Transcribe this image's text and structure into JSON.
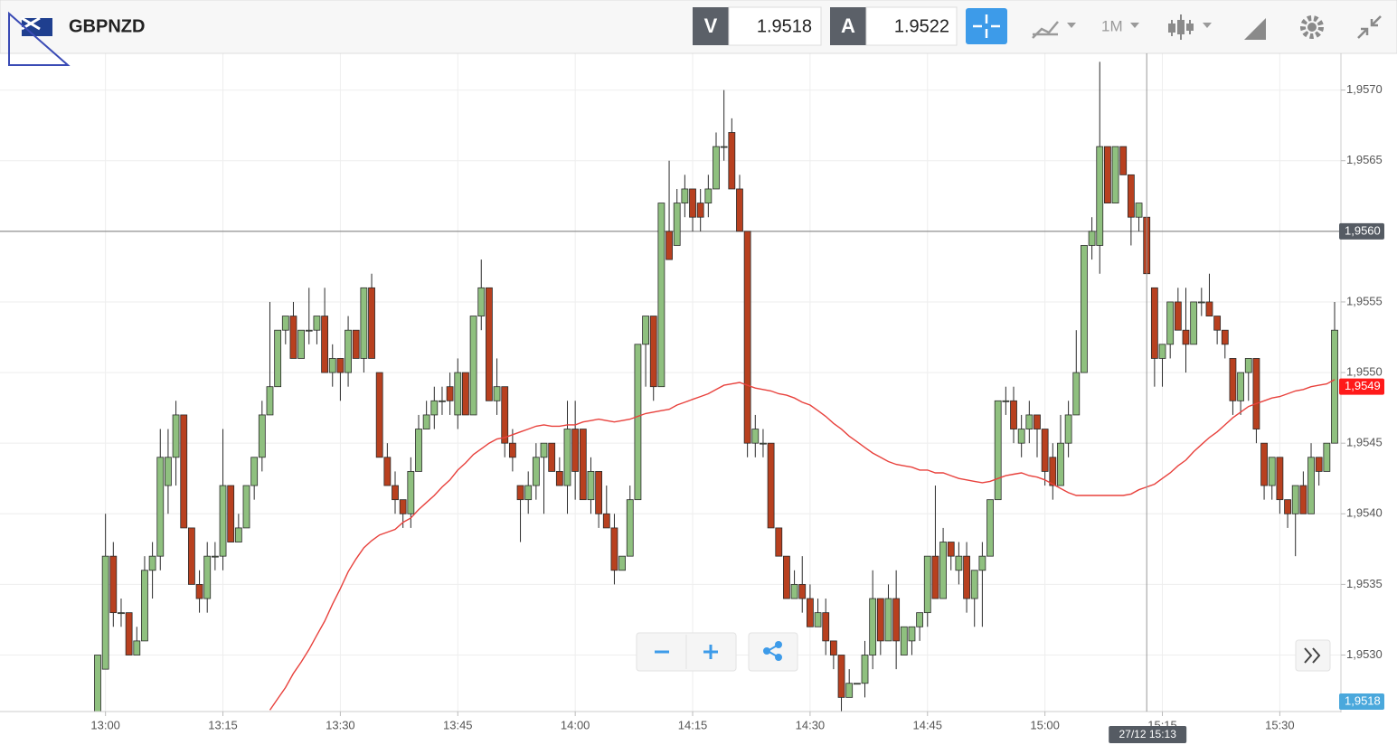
{
  "chart_data": {
    "type": "candlestick",
    "title": "GBPNZD",
    "bid": {
      "label": "V",
      "value": 1.9518
    },
    "ask": {
      "label": "A",
      "value": 1.9522
    },
    "interval": "1M",
    "categories_count_note_free": null,
    "xticks": [
      {
        "value": 1,
        "label": "13:00"
      },
      {
        "value": 16,
        "label": "13:15"
      },
      {
        "value": 31,
        "label": "13:30"
      },
      {
        "value": 46,
        "label": "13:45"
      },
      {
        "value": 61,
        "label": "14:00"
      },
      {
        "value": 76,
        "label": "14:15"
      },
      {
        "value": 91,
        "label": "14:30"
      },
      {
        "value": 106,
        "label": "14:45"
      },
      {
        "value": 121,
        "label": "15:00"
      },
      {
        "value": 136,
        "label": "15:15"
      },
      {
        "value": 151,
        "label": "15:30"
      }
    ],
    "xlim": [
      -0.5,
      158.5
    ],
    "ylim": [
      1.9526,
      1.95726
    ],
    "yticks": [
      {
        "value": 1.953,
        "label": "1,9530"
      },
      {
        "value": 1.9535,
        "label": "1,9535"
      },
      {
        "value": 1.954,
        "label": "1,9540"
      },
      {
        "value": 1.9545,
        "label": "1,9545"
      },
      {
        "value": 1.955,
        "label": "1,9550"
      },
      {
        "value": 1.9555,
        "label": "1,9555"
      },
      {
        "value": 1.956,
        "label": "1,9560"
      },
      {
        "value": 1.9565,
        "label": "1,9565"
      },
      {
        "value": 1.957,
        "label": "1,9570"
      }
    ],
    "grid": true,
    "up_color": "#8fc07f",
    "down_color": "#b8401f",
    "outline": "#2a2a2a",
    "open": [
      1.9526,
      1.9529,
      1.9537,
      1.9533,
      1.9533,
      1.953,
      1.9531,
      1.9536,
      1.9537,
      1.9542,
      1.9544,
      1.9547,
      1.9539,
      1.9535,
      1.9534,
      1.9537,
      1.9537,
      1.9542,
      1.9538,
      1.9539,
      1.9542,
      1.9544,
      1.9547,
      1.9549,
      1.9553,
      1.9554,
      1.9551,
      1.9553,
      1.9553,
      1.9554,
      1.955,
      1.9551,
      1.955,
      1.9553,
      1.9551,
      1.9556,
      1.955,
      1.9544,
      1.9542,
      1.9541,
      1.954,
      1.9543,
      1.9546,
      1.9547,
      1.9548,
      1.9549,
      1.9547,
      1.955,
      1.9547,
      1.9554,
      1.9556,
      1.9548,
      1.9549,
      1.9545,
      1.9542,
      1.9541,
      1.9542,
      1.9544,
      1.9545,
      1.9543,
      1.9542,
      1.9546,
      1.9546,
      1.9541,
      1.9543,
      1.954,
      1.9539,
      1.9536,
      1.9537,
      1.9541,
      1.9552,
      1.9554,
      1.9549,
      1.956,
      1.9559,
      1.9562,
      1.9563,
      1.9562,
      1.9562,
      1.9563,
      1.9566,
      1.9567,
      1.9563,
      1.956,
      1.9545,
      1.9545,
      1.9545,
      1.9539,
      1.9537,
      1.9534,
      1.9535,
      1.9534,
      1.9532,
      1.9533,
      1.9531,
      1.953,
      1.9527,
      1.9528,
      1.9528,
      1.953,
      1.9534,
      1.9531,
      1.9534,
      1.953,
      1.9531,
      1.9532,
      1.9533,
      1.9537,
      1.9534,
      1.9538,
      1.9536,
      1.9537,
      1.9534,
      1.9536,
      1.9537,
      1.9541,
      1.9548,
      1.9548,
      1.9545,
      1.9546,
      1.9547,
      1.9546,
      1.9544,
      1.9542,
      1.9545,
      1.9547,
      1.955,
      1.9559,
      1.9559,
      1.9566,
      1.9562,
      1.9566,
      1.9564,
      1.9561,
      1.9561,
      1.9556,
      1.9551,
      1.9552,
      1.9555,
      1.9553,
      1.9552,
      1.9555,
      1.9555,
      1.9554,
      1.9553,
      1.9551,
      1.9548,
      1.955,
      1.9551,
      1.9545,
      1.9542,
      1.9544,
      1.9541,
      1.954,
      1.9542,
      1.954,
      1.9544,
      1.9543,
      1.9545
    ],
    "high": [
      1.953,
      1.954,
      1.9538,
      1.9534,
      1.9533,
      1.9532,
      1.9537,
      1.9538,
      1.9546,
      1.9546,
      1.9548,
      1.9547,
      1.9539,
      1.9536,
      1.9538,
      1.9538,
      1.9546,
      1.9542,
      1.954,
      1.9542,
      1.9544,
      1.9548,
      1.9555,
      1.9553,
      1.9554,
      1.9555,
      1.9553,
      1.9556,
      1.9554,
      1.9556,
      1.9552,
      1.9551,
      1.9554,
      1.9553,
      1.9556,
      1.9557,
      1.955,
      1.9545,
      1.9543,
      1.9541,
      1.9544,
      1.9547,
      1.9548,
      1.9549,
      1.9549,
      1.955,
      1.9551,
      1.955,
      1.9554,
      1.9558,
      1.9556,
      1.9551,
      1.9549,
      1.9546,
      1.9542,
      1.9543,
      1.9545,
      1.9545,
      1.9545,
      1.9544,
      1.9548,
      1.9548,
      1.9546,
      1.9544,
      1.9543,
      1.9542,
      1.954,
      1.9537,
      1.9542,
      1.9552,
      1.9554,
      1.9554,
      1.9562,
      1.9565,
      1.9563,
      1.9564,
      1.9563,
      1.9563,
      1.9564,
      1.9567,
      1.957,
      1.9568,
      1.9564,
      1.956,
      1.9547,
      1.9546,
      1.9545,
      1.9539,
      1.9537,
      1.9536,
      1.9537,
      1.9535,
      1.9534,
      1.9534,
      1.9531,
      1.953,
      1.9529,
      1.9528,
      1.9531,
      1.9536,
      1.9534,
      1.9535,
      1.9536,
      1.9532,
      1.9532,
      1.9533,
      1.9537,
      1.9542,
      1.9539,
      1.9538,
      1.9538,
      1.9538,
      1.9536,
      1.9538,
      1.9541,
      1.9548,
      1.9549,
      1.9549,
      1.9547,
      1.9548,
      1.9547,
      1.9546,
      1.9545,
      1.9547,
      1.9548,
      1.9553,
      1.9559,
      1.9561,
      1.9572,
      1.9566,
      1.9566,
      1.9566,
      1.9564,
      1.9562,
      1.9561,
      1.9556,
      1.9552,
      1.9555,
      1.9556,
      1.9556,
      1.9555,
      1.9556,
      1.9557,
      1.9554,
      1.9553,
      1.9551,
      1.955,
      1.9551,
      1.9551,
      1.9545,
      1.9544,
      1.9544,
      1.9541,
      1.9542,
      1.9543,
      1.9545,
      1.9544,
      1.9545,
      1.9555
    ],
    "low": [
      1.9526,
      1.9529,
      1.9532,
      1.9532,
      1.953,
      1.953,
      1.9531,
      1.9534,
      1.9536,
      1.954,
      1.9542,
      1.9539,
      1.9535,
      1.9533,
      1.9533,
      1.9536,
      1.9536,
      1.9538,
      1.9538,
      1.9539,
      1.9541,
      1.9543,
      1.9547,
      1.9549,
      1.9552,
      1.9551,
      1.9551,
      1.9552,
      1.9552,
      1.955,
      1.9549,
      1.9548,
      1.9549,
      1.9551,
      1.955,
      1.9551,
      1.9544,
      1.9542,
      1.954,
      1.9539,
      1.9539,
      1.9543,
      1.9546,
      1.9546,
      1.9547,
      1.9547,
      1.9546,
      1.9547,
      1.9547,
      1.9553,
      1.9548,
      1.9547,
      1.9544,
      1.9543,
      1.9538,
      1.954,
      1.9541,
      1.954,
      1.9543,
      1.9542,
      1.954,
      1.9541,
      1.9541,
      1.954,
      1.9539,
      1.9539,
      1.9535,
      1.9536,
      1.9537,
      1.9541,
      1.9549,
      1.9548,
      1.9549,
      1.9558,
      1.9559,
      1.9561,
      1.956,
      1.956,
      1.9561,
      1.9563,
      1.9565,
      1.9563,
      1.956,
      1.9544,
      1.9544,
      1.9544,
      1.9539,
      1.9537,
      1.9534,
      1.9534,
      1.9533,
      1.9532,
      1.9532,
      1.953,
      1.9529,
      1.9526,
      1.9527,
      1.9528,
      1.9527,
      1.9529,
      1.953,
      1.9531,
      1.9529,
      1.953,
      1.953,
      1.9531,
      1.9532,
      1.9534,
      1.9534,
      1.9536,
      1.9535,
      1.9533,
      1.9532,
      1.9532,
      1.9537,
      1.9541,
      1.9547,
      1.9545,
      1.9544,
      1.9545,
      1.9544,
      1.9542,
      1.9541,
      1.9542,
      1.9544,
      1.9547,
      1.955,
      1.9558,
      1.9557,
      1.9562,
      1.9562,
      1.9564,
      1.9559,
      1.956,
      1.9557,
      1.9549,
      1.9549,
      1.9551,
      1.9553,
      1.955,
      1.9552,
      1.9554,
      1.9554,
      1.9552,
      1.9551,
      1.9547,
      1.9547,
      1.9548,
      1.9545,
      1.9541,
      1.9541,
      1.954,
      1.9539,
      1.9537,
      1.954,
      1.954,
      1.9542,
      1.9543,
      1.9545
    ],
    "close": [
      1.953,
      1.9537,
      1.9533,
      1.9533,
      1.953,
      1.9531,
      1.9536,
      1.9537,
      1.9544,
      1.9544,
      1.9547,
      1.9539,
      1.9535,
      1.9534,
      1.9537,
      1.9537,
      1.9542,
      1.9538,
      1.9539,
      1.9542,
      1.9544,
      1.9547,
      1.9549,
      1.9553,
      1.9554,
      1.9551,
      1.9553,
      1.9553,
      1.9554,
      1.955,
      1.9551,
      1.955,
      1.9553,
      1.9551,
      1.9556,
      1.9551,
      1.9544,
      1.9542,
      1.9541,
      1.954,
      1.9543,
      1.9546,
      1.9547,
      1.9548,
      1.9548,
      1.9548,
      1.955,
      1.9547,
      1.9554,
      1.9556,
      1.9548,
      1.9549,
      1.9545,
      1.9544,
      1.9541,
      1.9542,
      1.9544,
      1.9545,
      1.9543,
      1.9542,
      1.9546,
      1.9543,
      1.9541,
      1.9543,
      1.954,
      1.9539,
      1.9536,
      1.9537,
      1.9541,
      1.9552,
      1.9554,
      1.9549,
      1.9562,
      1.9558,
      1.9562,
      1.9563,
      1.9561,
      1.9561,
      1.9563,
      1.9566,
      1.9566,
      1.9563,
      1.956,
      1.9545,
      1.9546,
      1.9545,
      1.9539,
      1.9537,
      1.9534,
      1.9535,
      1.9534,
      1.9532,
      1.9533,
      1.9531,
      1.953,
      1.9527,
      1.9528,
      1.9528,
      1.953,
      1.9534,
      1.9531,
      1.9534,
      1.9531,
      1.9532,
      1.9532,
      1.9533,
      1.9537,
      1.9534,
      1.9538,
      1.9537,
      1.9537,
      1.9534,
      1.9536,
      1.9537,
      1.9541,
      1.9548,
      1.9548,
      1.9546,
      1.9546,
      1.9547,
      1.9546,
      1.9543,
      1.9542,
      1.9545,
      1.9547,
      1.955,
      1.9559,
      1.956,
      1.9566,
      1.9562,
      1.9566,
      1.9564,
      1.9561,
      1.9562,
      1.9557,
      1.9551,
      1.9552,
      1.9555,
      1.9553,
      1.9552,
      1.9555,
      1.9555,
      1.9554,
      1.9553,
      1.9552,
      1.9548,
      1.955,
      1.9551,
      1.9546,
      1.9542,
      1.9544,
      1.9541,
      1.954,
      1.9542,
      1.954,
      1.9544,
      1.9543,
      1.9545,
      1.9553
    ],
    "ma": {
      "color": "#e8413c",
      "values": [
        null,
        null,
        null,
        null,
        null,
        null,
        null,
        null,
        null,
        null,
        null,
        null,
        null,
        null,
        null,
        null,
        null,
        null,
        null,
        null,
        null,
        null,
        1.95261,
        1.95269,
        1.95277,
        1.95287,
        1.95295,
        1.95304,
        1.95314,
        1.95324,
        1.95336,
        1.95347,
        1.95359,
        1.95368,
        1.95376,
        1.95381,
        1.95385,
        1.95387,
        1.95389,
        1.95394,
        1.95397,
        1.95403,
        1.95408,
        1.95413,
        1.95419,
        1.95424,
        1.95431,
        1.95436,
        1.95442,
        1.95446,
        1.9545,
        1.95453,
        1.95454,
        1.95456,
        1.95458,
        1.9546,
        1.95462,
        1.95463,
        1.95462,
        1.95462,
        1.95463,
        1.95463,
        1.95465,
        1.95466,
        1.95467,
        1.95466,
        1.95465,
        1.95466,
        1.95467,
        1.95469,
        1.95471,
        1.95472,
        1.95473,
        1.95474,
        1.95477,
        1.95479,
        1.95481,
        1.95483,
        1.95485,
        1.95488,
        1.95491,
        1.95492,
        1.95493,
        1.95491,
        1.95489,
        1.95488,
        1.95487,
        1.95485,
        1.95484,
        1.95482,
        1.95479,
        1.95477,
        1.95473,
        1.95469,
        1.95464,
        1.9546,
        1.95455,
        1.95451,
        1.95447,
        1.95443,
        1.9544,
        1.95437,
        1.95435,
        1.95434,
        1.95433,
        1.95431,
        1.95431,
        1.95429,
        1.95429,
        1.95427,
        1.95425,
        1.95424,
        1.95423,
        1.95422,
        1.95423,
        1.95425,
        1.95427,
        1.95428,
        1.95429,
        1.95427,
        1.95426,
        1.95424,
        1.95421,
        1.95418,
        1.95415,
        1.95413,
        1.95413,
        1.95413,
        1.95413,
        1.95413,
        1.95413,
        1.95413,
        1.95414,
        1.95417,
        1.95419,
        1.95421,
        1.95425,
        1.95429,
        1.95434,
        1.95438,
        1.95444,
        1.95449,
        1.95454,
        1.95458,
        1.95463,
        1.95468,
        1.95472,
        1.95476,
        1.95478,
        1.9548,
        1.95482,
        1.95483,
        1.95485,
        1.95487,
        1.95488,
        1.9549,
        1.95491,
        1.95492,
        1.95495
      ]
    },
    "ma_label": {
      "value": 1.9549,
      "label": "1,9549"
    },
    "price_label": {
      "value": 1.9518,
      "label": "1,9518"
    },
    "crosshair": {
      "value": 1.956,
      "label": "1,9560",
      "time_label": "27/12 15:13"
    }
  }
}
